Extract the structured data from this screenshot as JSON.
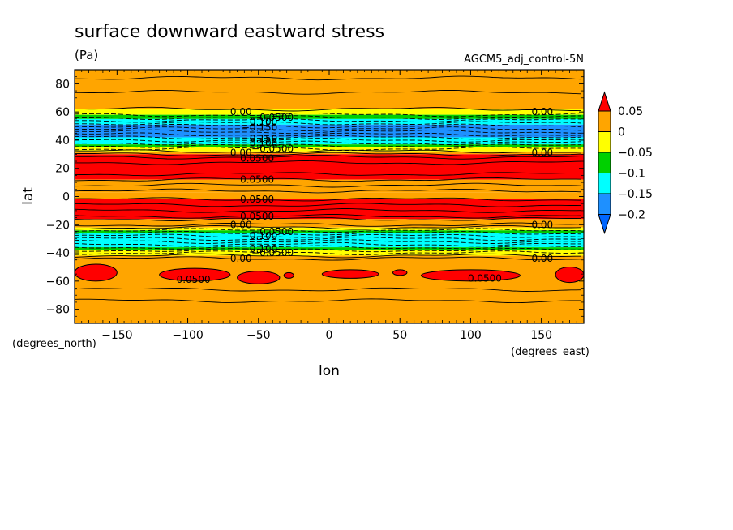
{
  "chart_data": {
    "type": "heatmap",
    "title": "surface downward eastward stress",
    "units": "(Pa)",
    "dataset_label": "AGCM5_adj_control-5N",
    "xlabel": "lon",
    "ylabel": "lat",
    "x_units": "(degrees_east)",
    "y_units": "(degrees_north)",
    "xlim": [
      -180,
      180
    ],
    "ylim": [
      -90,
      90
    ],
    "x_ticks": [
      -150,
      -100,
      -50,
      0,
      50,
      100,
      150
    ],
    "y_ticks": [
      80,
      60,
      40,
      20,
      0,
      -20,
      -40,
      -60,
      -80
    ],
    "grid": false,
    "colorbar": {
      "position": "right",
      "levels": [
        0.05,
        0,
        -0.05,
        -0.1,
        -0.15,
        -0.2
      ],
      "level_labels": [
        "0.05",
        "0",
        "−0.05",
        "−0.1",
        "−0.15",
        "−0.2"
      ],
      "colors": [
        "#ff0000",
        "#ffa500",
        "#ffff00",
        "#00d000",
        "#00ffff",
        "#1e90ff",
        "#0066ff"
      ],
      "extend": "both"
    },
    "bands": [
      {
        "lat_min": 62,
        "lat_max": 90,
        "color": "#ffa500",
        "approx_value": 0.02
      },
      {
        "lat_min": 58,
        "lat_max": 62,
        "color": "#ffff00",
        "approx_value": -0.02
      },
      {
        "lat_min": 55,
        "lat_max": 58,
        "color": "#00d000",
        "approx_value": -0.07
      },
      {
        "lat_min": 51,
        "lat_max": 55,
        "color": "#00ffff",
        "approx_value": -0.12
      },
      {
        "lat_min": 42,
        "lat_max": 51,
        "color": "#1e90ff",
        "approx_value": -0.17
      },
      {
        "lat_min": 37,
        "lat_max": 42,
        "color": "#00ffff",
        "approx_value": -0.12
      },
      {
        "lat_min": 35,
        "lat_max": 37,
        "color": "#00d000",
        "approx_value": -0.07
      },
      {
        "lat_min": 32,
        "lat_max": 35,
        "color": "#ffff00",
        "approx_value": -0.02
      },
      {
        "lat_min": 30,
        "lat_max": 32,
        "color": "#ffa500",
        "approx_value": 0.02
      },
      {
        "lat_min": 12,
        "lat_max": 30,
        "color": "#ff0000",
        "approx_value": 0.06
      },
      {
        "lat_min": 3,
        "lat_max": 12,
        "color": "#ffa500",
        "approx_value": 0.03
      },
      {
        "lat_min": -2,
        "lat_max": 3,
        "color": "#ffa500",
        "approx_value": 0.04
      },
      {
        "lat_min": -16,
        "lat_max": -2,
        "color": "#ff0000",
        "approx_value": 0.06
      },
      {
        "lat_min": -22,
        "lat_max": -16,
        "color": "#ffa500",
        "approx_value": 0.02
      },
      {
        "lat_min": -24,
        "lat_max": -22,
        "color": "#ffff00",
        "approx_value": -0.02
      },
      {
        "lat_min": -26,
        "lat_max": -24,
        "color": "#00d000",
        "approx_value": -0.07
      },
      {
        "lat_min": -36,
        "lat_max": -26,
        "color": "#00ffff",
        "approx_value": -0.12
      },
      {
        "lat_min": -38,
        "lat_max": -36,
        "color": "#00d000",
        "approx_value": -0.07
      },
      {
        "lat_min": -42,
        "lat_max": -38,
        "color": "#ffff00",
        "approx_value": -0.02
      },
      {
        "lat_min": -90,
        "lat_max": -42,
        "color": "#ffa500",
        "approx_value": 0.02
      }
    ],
    "red_patches": [
      {
        "lon_min": -180,
        "lon_max": -150,
        "lat_min": -60,
        "lat_max": -48
      },
      {
        "lon_min": -120,
        "lon_max": -70,
        "lat_min": -60,
        "lat_max": -51
      },
      {
        "lon_min": -65,
        "lon_max": -35,
        "lat_min": -62,
        "lat_max": -53
      },
      {
        "lon_min": -32,
        "lon_max": -25,
        "lat_min": -58,
        "lat_max": -54
      },
      {
        "lon_min": -5,
        "lon_max": 35,
        "lat_min": -58,
        "lat_max": -52
      },
      {
        "lon_min": 45,
        "lon_max": 55,
        "lat_min": -56,
        "lat_max": -52
      },
      {
        "lon_min": 65,
        "lon_max": 135,
        "lat_min": -60,
        "lat_max": -52
      },
      {
        "lon_min": 160,
        "lon_max": 180,
        "lat_min": -61,
        "lat_max": -50
      }
    ],
    "solid_contour_lats": [
      84,
      74,
      62,
      32,
      30,
      28,
      24,
      16,
      12,
      8,
      4,
      -2,
      -6,
      -10,
      -14,
      -16,
      -20,
      -22,
      -42,
      -44,
      -66,
      -74
    ],
    "dashed_contour_lats": [
      58,
      56,
      54,
      52,
      50,
      48,
      46,
      44,
      42,
      40,
      38,
      36,
      34,
      -24,
      -26,
      -28,
      -30,
      -32,
      -34,
      -36,
      -38,
      -40
    ],
    "contour_labels": [
      {
        "text": "0.00",
        "lon": -70,
        "lat": 60
      },
      {
        "text": "−0.0500",
        "lon": -55,
        "lat": 56
      },
      {
        "text": "−0.100",
        "lon": -62,
        "lat": 53
      },
      {
        "text": "−0.150",
        "lon": -62,
        "lat": 49
      },
      {
        "text": "−0.150",
        "lon": -62,
        "lat": 41
      },
      {
        "text": "−0.100",
        "lon": -62,
        "lat": 38
      },
      {
        "text": "−0.0500",
        "lon": -55,
        "lat": 34
      },
      {
        "text": "0.00",
        "lon": -70,
        "lat": 31
      },
      {
        "text": "0.0500",
        "lon": -63,
        "lat": 27
      },
      {
        "text": "0.0500",
        "lon": -63,
        "lat": 12
      },
      {
        "text": "0.0500",
        "lon": -63,
        "lat": -2
      },
      {
        "text": "0.0500",
        "lon": -63,
        "lat": -14
      },
      {
        "text": "0.00",
        "lon": -70,
        "lat": -20
      },
      {
        "text": "−0.0500",
        "lon": -55,
        "lat": -25
      },
      {
        "text": "−0.100",
        "lon": -62,
        "lat": -28
      },
      {
        "text": "−0.100",
        "lon": -62,
        "lat": -37
      },
      {
        "text": "−0.0500",
        "lon": -55,
        "lat": -40
      },
      {
        "text": "0.00",
        "lon": -70,
        "lat": -44
      },
      {
        "text": "0.0500",
        "lon": -108,
        "lat": -59
      },
      {
        "text": "0.0500",
        "lon": 98,
        "lat": -58
      },
      {
        "text": "0.00",
        "lon": 143,
        "lat": 60
      },
      {
        "text": "0.00",
        "lon": 143,
        "lat": 31
      },
      {
        "text": "0.00",
        "lon": 143,
        "lat": -20
      },
      {
        "text": "0.00",
        "lon": 143,
        "lat": -44
      }
    ]
  }
}
